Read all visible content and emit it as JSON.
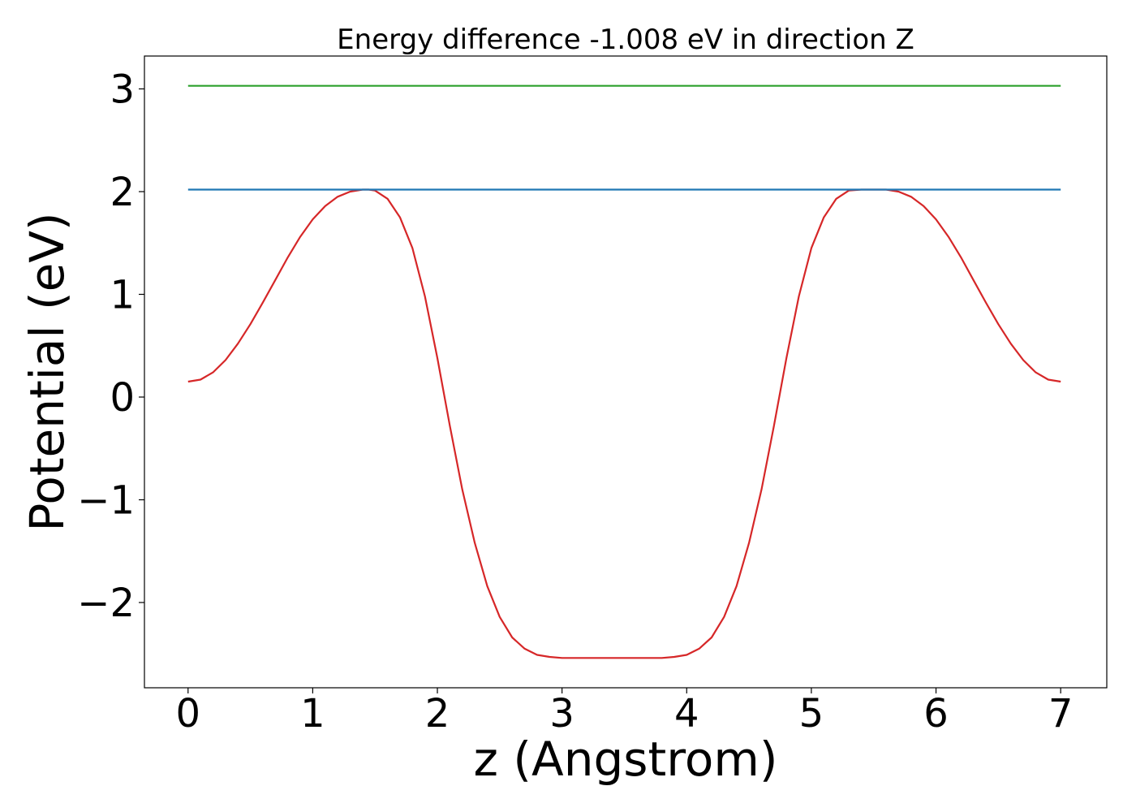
{
  "chart_data": {
    "type": "line",
    "title": "Energy difference -1.008 eV in direction Z",
    "xlabel": "z (Angstrom)",
    "ylabel": "Potential (eV)",
    "xlim": [
      -0.35,
      7.37
    ],
    "ylim": [
      -2.83,
      3.32
    ],
    "xticks": [
      0,
      1,
      2,
      3,
      4,
      5,
      6,
      7
    ],
    "yticks": [
      -2,
      -1,
      0,
      1,
      2,
      3
    ],
    "x_tick_labels": [
      "0",
      "1",
      "2",
      "3",
      "4",
      "5",
      "6",
      "7"
    ],
    "y_tick_labels": [
      "−2",
      "−1",
      "0",
      "1",
      "2",
      "3"
    ],
    "grid": false,
    "series": [
      {
        "color": "#d62728",
        "x": [
          0,
          0.1,
          0.2,
          0.3,
          0.4,
          0.5,
          0.6,
          0.7,
          0.8,
          0.9,
          1.0,
          1.1,
          1.2,
          1.3,
          1.4,
          1.45,
          1.5,
          1.6,
          1.7,
          1.8,
          1.9,
          2.0,
          2.1,
          2.2,
          2.3,
          2.4,
          2.5,
          2.6,
          2.7,
          2.8,
          2.9,
          3.0,
          3.1,
          3.2,
          3.3,
          3.4,
          3.5,
          3.6,
          3.7,
          3.8,
          3.9,
          4.0,
          4.1,
          4.2,
          4.3,
          4.4,
          4.5,
          4.6,
          4.7,
          4.8,
          4.9,
          5.0,
          5.1,
          5.2,
          5.3,
          5.4,
          5.5,
          5.55,
          5.6,
          5.7,
          5.8,
          5.9,
          6.0,
          6.1,
          6.2,
          6.3,
          6.4,
          6.5,
          6.6,
          6.7,
          6.8,
          6.9,
          7.0
        ],
        "y": [
          0.15,
          0.17,
          0.24,
          0.36,
          0.52,
          0.71,
          0.92,
          1.14,
          1.36,
          1.56,
          1.73,
          1.86,
          1.95,
          2.0,
          2.02,
          2.02,
          2.01,
          1.93,
          1.75,
          1.45,
          0.98,
          0.38,
          -0.28,
          -0.9,
          -1.42,
          -1.84,
          -2.14,
          -2.34,
          -2.45,
          -2.51,
          -2.53,
          -2.54,
          -2.54,
          -2.54,
          -2.54,
          -2.54,
          -2.54,
          -2.54,
          -2.54,
          -2.54,
          -2.53,
          -2.51,
          -2.45,
          -2.34,
          -2.14,
          -1.84,
          -1.42,
          -0.9,
          -0.28,
          0.38,
          0.98,
          1.45,
          1.75,
          1.93,
          2.01,
          2.02,
          2.02,
          2.02,
          2.02,
          2.0,
          1.95,
          1.86,
          1.73,
          1.56,
          1.36,
          1.14,
          0.92,
          0.71,
          0.52,
          0.36,
          0.24,
          0.17,
          0.15
        ]
      },
      {
        "color": "#1f77b4",
        "x": [
          0,
          7
        ],
        "y": [
          2.02,
          2.02
        ]
      },
      {
        "color": "#2ca02c",
        "x": [
          0,
          7
        ],
        "y": [
          3.03,
          3.03
        ]
      }
    ]
  }
}
